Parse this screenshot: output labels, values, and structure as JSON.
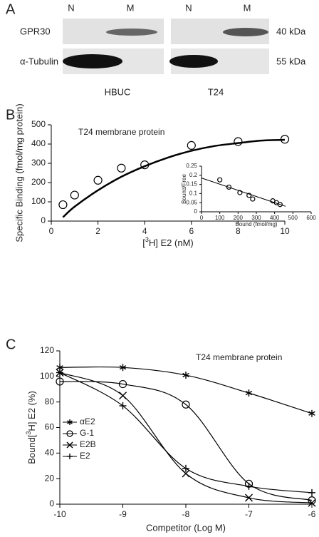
{
  "panel_labels": [
    "A",
    "B",
    "C"
  ],
  "blot": {
    "lanes": [
      "N",
      "M",
      "N",
      "M"
    ],
    "rows": [
      {
        "label": "GPR30",
        "size": "40 kDa"
      },
      {
        "label": "α-Tubulin",
        "size": "55 kDa"
      }
    ],
    "cell_lines": [
      "HBUC",
      "T24"
    ]
  },
  "chart_data": [
    {
      "type": "scatter_fit",
      "annotation": "T24 membrane protein",
      "y_label": "Specific Binding (fmol/mg protein)",
      "x_label_parts": [
        "[",
        "3",
        "H] E2  (nM)"
      ],
      "xlim": [
        0,
        10
      ],
      "xticks": [
        0,
        2,
        4,
        6,
        8,
        10
      ],
      "ylim": [
        0,
        500
      ],
      "yticks": [
        0,
        100,
        200,
        300,
        400,
        500
      ],
      "points": {
        "x": [
          0.5,
          1,
          2,
          3,
          4,
          6,
          8,
          10
        ],
        "values": [
          85,
          135,
          212,
          275,
          292,
          393,
          413,
          425
        ]
      },
      "fit": {
        "x": [
          0.5,
          1,
          2,
          3,
          4,
          5,
          6,
          7,
          8,
          9,
          10
        ],
        "values": [
          20,
          75,
          160,
          230,
          285,
          330,
          365,
          390,
          405,
          418,
          422
        ]
      },
      "color": "#000000"
    },
    {
      "type": "scatter_fit",
      "y_label": "Bound/Free",
      "x_label": "Bound (fmol/mg)",
      "xlim": [
        0,
        600
      ],
      "xticks": [
        0,
        100,
        200,
        300,
        400,
        500,
        600
      ],
      "ylim": [
        0,
        0.25
      ],
      "yticks": [
        0,
        0.05,
        0.1,
        0.15,
        0.2,
        0.25
      ],
      "points": {
        "x": [
          100,
          150,
          210,
          260,
          280,
          390,
          410,
          430
        ],
        "values": [
          0.175,
          0.135,
          0.105,
          0.09,
          0.07,
          0.06,
          0.05,
          0.04
        ]
      },
      "fit": {
        "x": [
          0,
          460
        ],
        "values": [
          0.185,
          0.03
        ]
      },
      "color": "#000000"
    },
    {
      "type": "line",
      "annotation": "T24 membrane protein",
      "y_label_parts": [
        "Bound[",
        "3",
        "H]  E2 (%)"
      ],
      "x_label": "Competitor (Log M)",
      "x": [
        -10,
        -9,
        -8,
        -7,
        -6
      ],
      "xlim": [
        -10,
        -6
      ],
      "xticks": [
        -10,
        -9,
        -8,
        -7,
        -6
      ],
      "ylim": [
        0,
        120
      ],
      "yticks": [
        0,
        20,
        40,
        60,
        80,
        100,
        120
      ],
      "series": [
        {
          "name": "αE2",
          "marker": "asterisk",
          "color": "#000000",
          "values": [
            107,
            107,
            101,
            87,
            71
          ]
        },
        {
          "name": "G-1",
          "marker": "circle",
          "color": "#000000",
          "values": [
            96,
            94,
            78,
            16,
            3
          ]
        },
        {
          "name": "E2B",
          "marker": "x",
          "color": "#000000",
          "values": [
            103,
            85,
            24,
            5,
            1
          ]
        },
        {
          "name": "E2",
          "marker": "plus",
          "color": "#000000",
          "values": [
            103,
            77,
            28,
            14,
            9
          ]
        }
      ]
    }
  ]
}
